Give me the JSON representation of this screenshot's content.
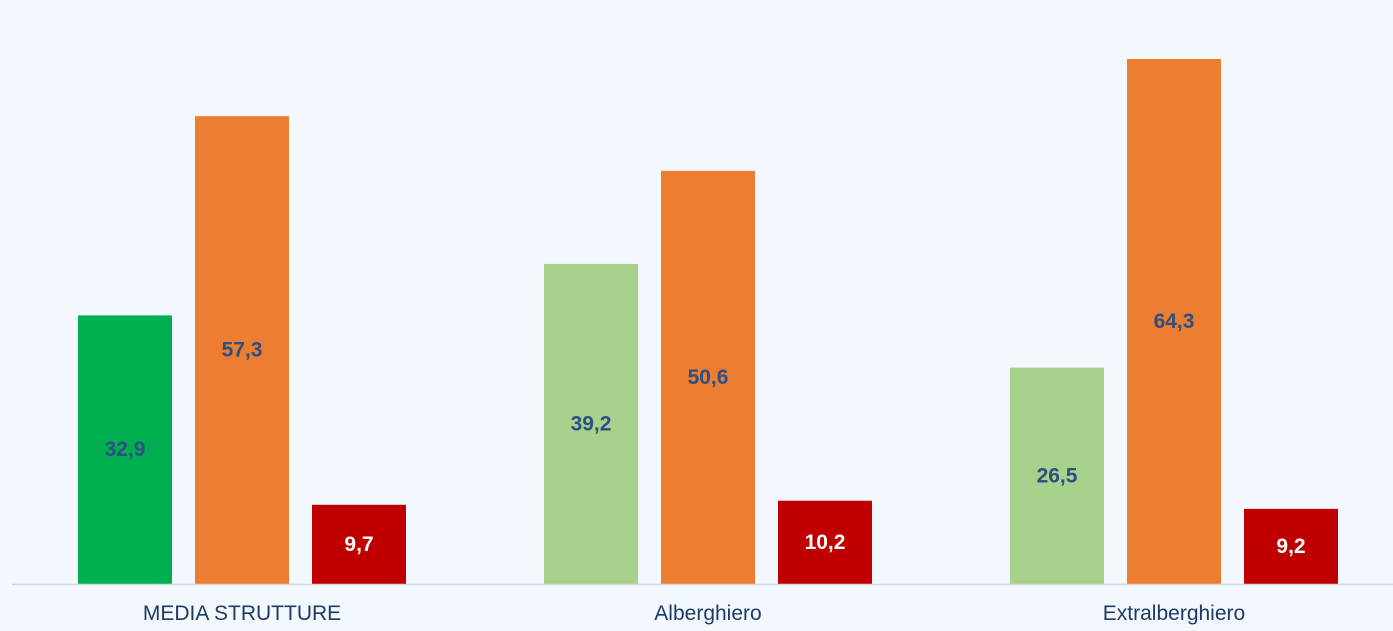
{
  "chart_data": {
    "type": "bar",
    "title": "",
    "xlabel": "",
    "ylabel": "",
    "ylim": [
      0,
      70.3
    ],
    "grid": false,
    "legend": "none",
    "categories": [
      "MEDIA STRUTTURE",
      "Alberghiero",
      "Extralberghiero"
    ],
    "series": [
      {
        "values": [
          32.9,
          39.2,
          26.5
        ],
        "labels": [
          "32,9",
          "39,2",
          "26,5"
        ],
        "colors": [
          "#00b050",
          "#a9d18e",
          "#a9d18e"
        ],
        "label_color": "#2e4f84"
      },
      {
        "values": [
          57.3,
          50.6,
          64.3
        ],
        "labels": [
          "57,3",
          "50,6",
          "64,3"
        ],
        "colors": [
          "#ed7d31",
          "#ed7d31",
          "#ed7d31"
        ],
        "label_color": "#2e4f84"
      },
      {
        "values": [
          9.7,
          10.2,
          9.2
        ],
        "labels": [
          "9,7",
          "10,2",
          "9,2"
        ],
        "colors": [
          "#c00000",
          "#c00000",
          "#c00000"
        ],
        "label_color": "#ffffff"
      }
    ]
  },
  "colors": {
    "background": "#f2f8fd",
    "axis": "#d0d4dc",
    "category_text": "#1f3a66"
  }
}
